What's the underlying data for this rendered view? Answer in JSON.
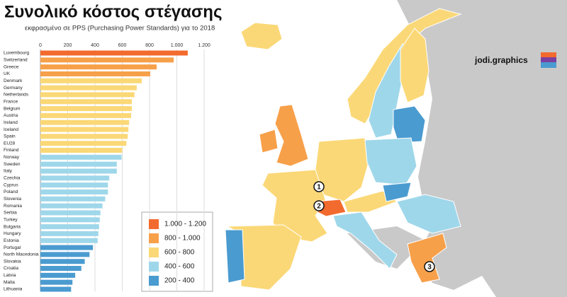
{
  "chart_data": {
    "type": "bar",
    "orientation": "horizontal",
    "title": "Συνολικό κόστος στέγασης",
    "subtitle": "εκφρασμένο σε PPS (Purchasing Power Standards) για το 2018",
    "categories": [
      "Luxembourg",
      "Switzerland",
      "Greece",
      "UK",
      "Denmark",
      "Germany",
      "Netherlands",
      "France",
      "Belgium",
      "Austria",
      "Ireland",
      "Iceland",
      "Spain",
      "EU28",
      "Finland",
      "Norway",
      "Sweden",
      "Italy",
      "Czechia",
      "Cyprus",
      "Poland",
      "Slovenia",
      "Romania",
      "Serbia",
      "Turkey",
      "Bulgaria",
      "Hungary",
      "Estonia",
      "Portugal",
      "North Macedonia",
      "Slovakia",
      "Croatia",
      "Latvia",
      "Malta",
      "Lithuania"
    ],
    "values": [
      1080,
      977,
      852,
      805,
      743,
      706,
      690,
      670,
      670,
      665,
      650,
      645,
      640,
      630,
      600,
      595,
      560,
      560,
      505,
      495,
      495,
      475,
      455,
      440,
      435,
      430,
      425,
      420,
      385,
      360,
      325,
      300,
      255,
      235,
      225
    ],
    "xlim": [
      0,
      1200
    ],
    "xticks": [
      0,
      200,
      400,
      600,
      800,
      {
        "value": 1000,
        "label": "1.000"
      },
      {
        "value": 1200,
        "label": "1.200"
      }
    ],
    "grid": true,
    "legend": [
      {
        "label": "1.000 - 1.200",
        "color": "#f26a2e",
        "min": 1000,
        "max": 1200
      },
      {
        "label": "800 - 1.000",
        "color": "#f7a04a",
        "min": 800,
        "max": 1000
      },
      {
        "label": "600 - 800",
        "color": "#fbd877",
        "min": 600,
        "max": 800
      },
      {
        "label": "400 - 600",
        "color": "#9fd7ea",
        "min": 400,
        "max": 600
      },
      {
        "label": "200 - 400",
        "color": "#4a9bd0",
        "min": 200,
        "max": 400
      }
    ],
    "map_markers": [
      "1",
      "2",
      "3"
    ],
    "credit": "jodi.graphics"
  }
}
